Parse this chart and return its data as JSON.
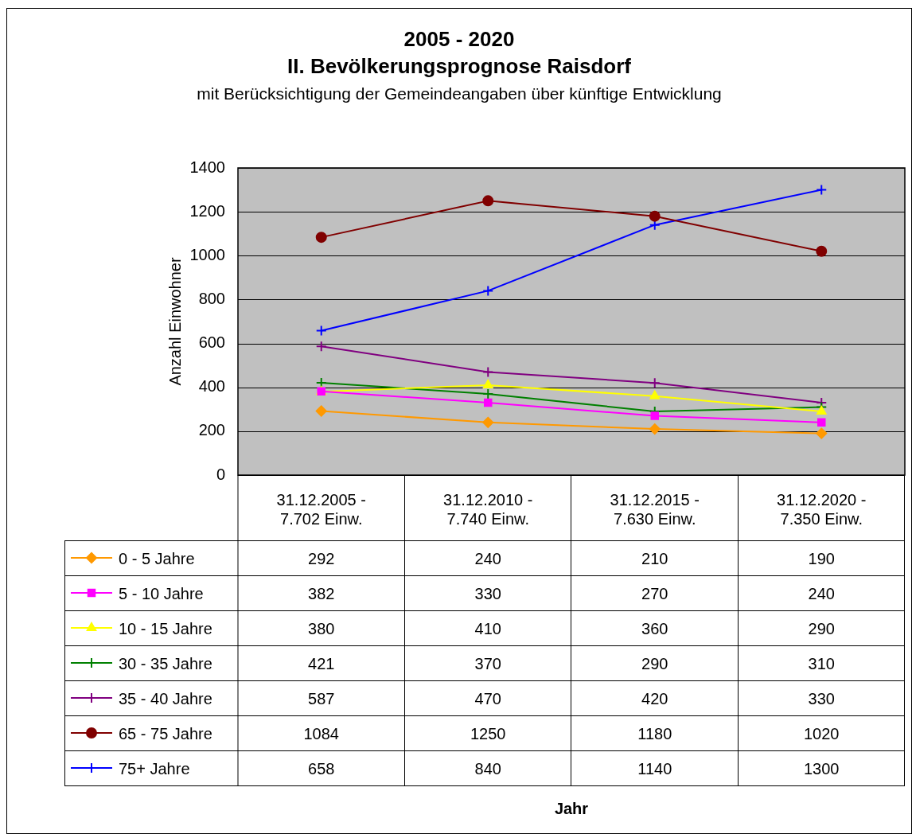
{
  "chart_data": {
    "type": "line",
    "title": "2005 - 2020\nII. Bevölkerungsprognose Raisdorf",
    "subtitle": "mit Berücksichtigung der Gemeindeangaben über künftige Entwicklung",
    "annotations": [
      "Jahr"
    ],
    "ylabel": "Anzahl Einwohner",
    "categories": [
      "31.12.2005 - 7.702 Einw.",
      "31.12.2010 - 7.740 Einw.",
      "31.12.2015 - 7.630 Einw.",
      "31.12.2020 - 7.350 Einw."
    ],
    "series": [
      {
        "name": "0 - 5 Jahre",
        "color": "#ff9900",
        "marker": "diamond",
        "values": [
          292,
          240,
          210,
          190
        ]
      },
      {
        "name": "5 - 10 Jahre",
        "color": "#ff00ff",
        "marker": "square",
        "values": [
          382,
          330,
          270,
          240
        ]
      },
      {
        "name": "10 - 15 Jahre",
        "color": "#ffff00",
        "marker": "triangle",
        "values": [
          380,
          410,
          360,
          290
        ]
      },
      {
        "name": "30 - 35 Jahre",
        "color": "#008000",
        "marker": "cross",
        "values": [
          421,
          370,
          290,
          310
        ]
      },
      {
        "name": "35 - 40 Jahre",
        "color": "#800080",
        "marker": "cross",
        "values": [
          587,
          470,
          420,
          330
        ]
      },
      {
        "name": "65 - 75 Jahre",
        "color": "#800000",
        "marker": "circle",
        "values": [
          1084,
          1250,
          1180,
          1020
        ]
      },
      {
        "name": "75+ Jahre",
        "color": "#0000ff",
        "marker": "cross",
        "values": [
          658,
          840,
          1140,
          1300
        ]
      }
    ],
    "ylim": [
      0,
      1400
    ],
    "yticks": [
      0,
      200,
      400,
      600,
      800,
      1000,
      1200,
      1400
    ],
    "grid": "y",
    "legend": "bottom left",
    "data_labels": true
  }
}
